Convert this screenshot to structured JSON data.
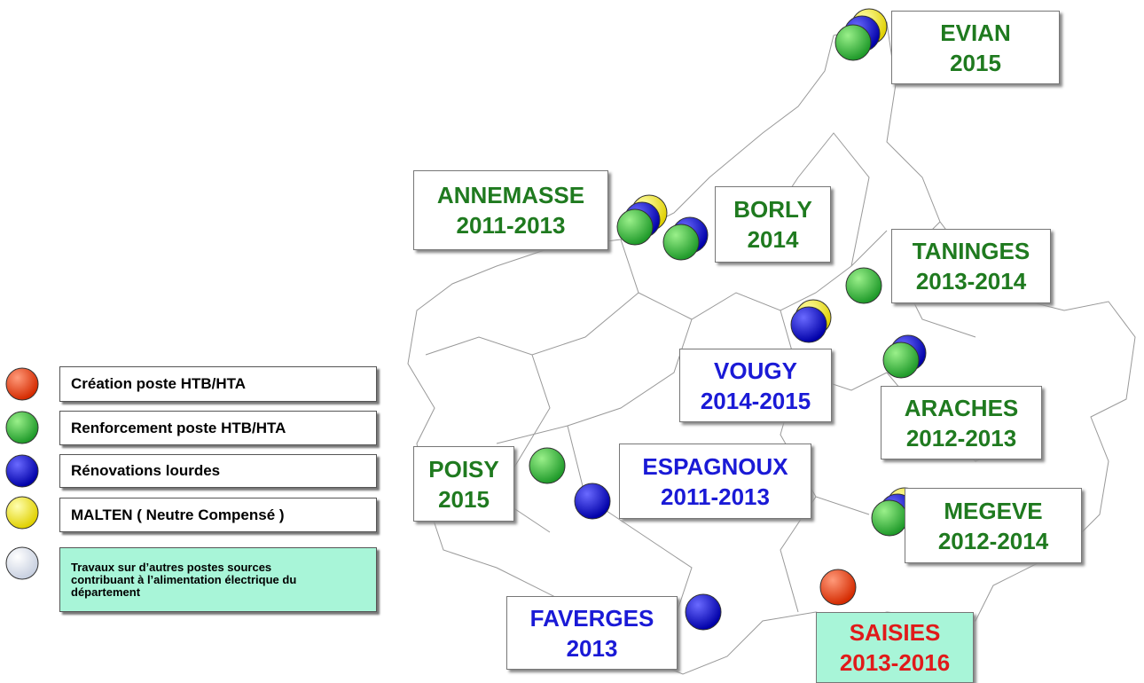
{
  "legend": [
    {
      "label": "Création poste HTB/HTA"
    },
    {
      "label": "Renforcement poste HTB/HTA"
    },
    {
      "label": "Rénovations lourdes"
    },
    {
      "label": "MALTEN ( Neutre Compensé )"
    },
    {
      "label": "Travaux sur d’autres postes sources contribuant à l’alimentation électrique du département"
    }
  ],
  "sites": [
    {
      "name": "EVIAN",
      "years": "2015"
    },
    {
      "name": "ANNEMASSE",
      "years": "2011-2013"
    },
    {
      "name": "BORLY",
      "years": "2014"
    },
    {
      "name": "TANINGES",
      "years": "2013-2014"
    },
    {
      "name": "VOUGY",
      "years": "2014-2015"
    },
    {
      "name": "ARACHES",
      "years": "2012-2013"
    },
    {
      "name": "POISY",
      "years": "2015"
    },
    {
      "name": "ESPAGNOUX",
      "years": "2011-2013"
    },
    {
      "name": "MEGEVE",
      "years": "2012-2014"
    },
    {
      "name": "FAVERGES",
      "years": "2013"
    },
    {
      "name": "SAISIES",
      "years": "2013-2016"
    }
  ]
}
